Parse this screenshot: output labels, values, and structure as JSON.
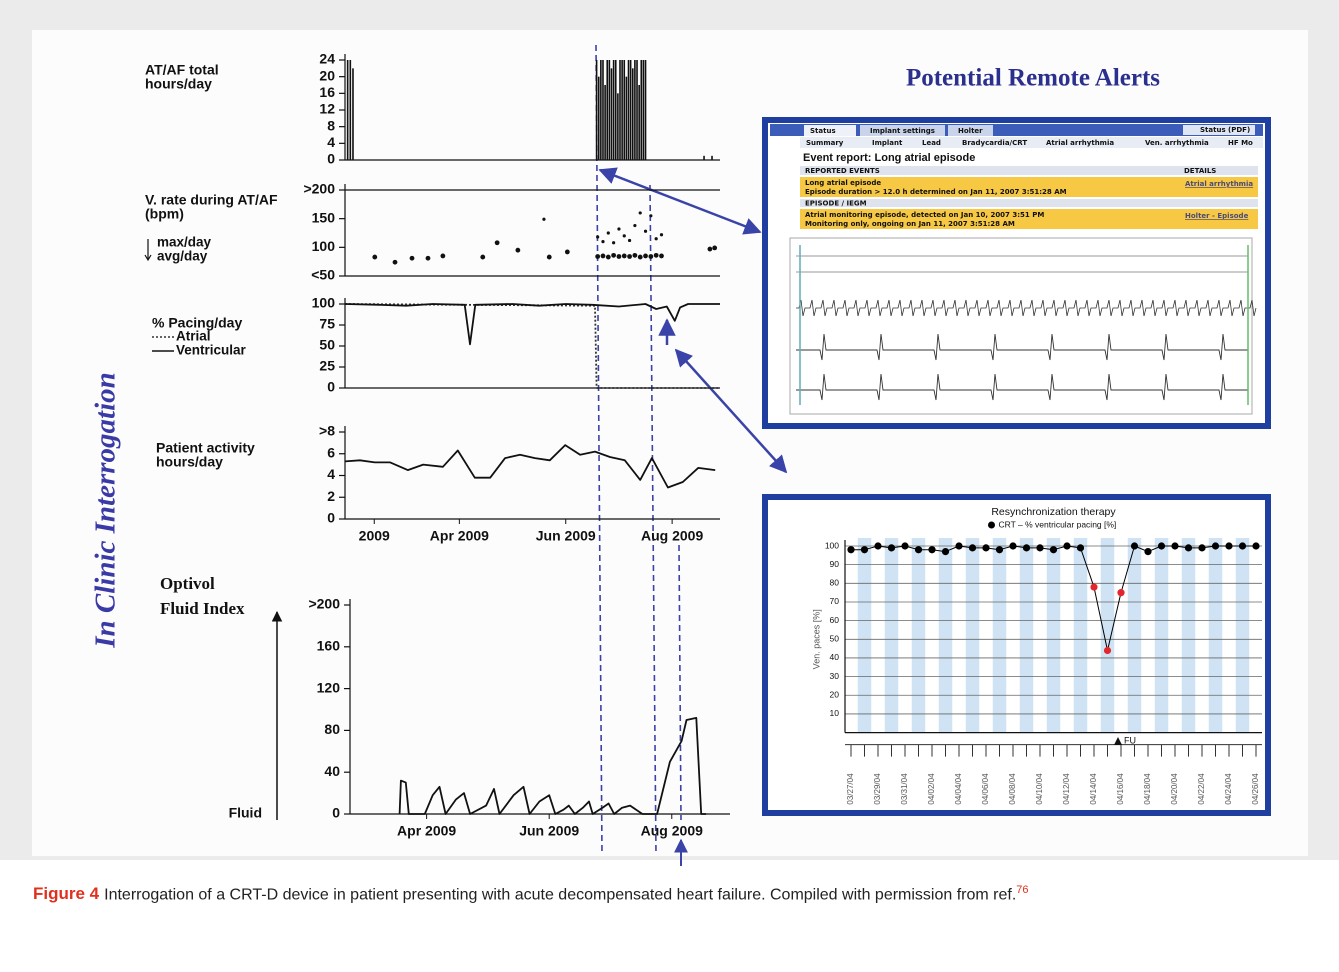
{
  "figure": {
    "alerts_title": "Potential Remote Alerts",
    "side_label": "In Clinic Interrogation",
    "caption": {
      "label": "Figure 4",
      "text": "Interrogation of a CRT-D device in patient presenting with acute decompensated heart failure. Compiled with permission from ref.",
      "ref": "76"
    }
  },
  "alert_screenshot": {
    "tabs": [
      "Status",
      "Implant settings",
      "Holter"
    ],
    "pdf_button": "Status (PDF)",
    "subtabs": [
      "Summary",
      "Implant",
      "Lead",
      "Bradycardia/CRT",
      "Atrial arrhythmia",
      "Ven. arrhythmia",
      "HF Mo"
    ],
    "heading": "Event report: Long atrial episode",
    "headers": [
      "REPORTED EVENTS",
      "DETAILS"
    ],
    "event_title": "Long atrial episode",
    "event_detail": "Episode duration > 12.0 h determined on Jan 11, 2007 3:51:28 AM",
    "event_link": "Atrial arrhythmia",
    "section": "EPISODE / IEGM",
    "episode_title": "Atrial monitoring episode, detected on Jan 10, 2007 3:51 PM",
    "episode_detail": "Monitoring only, ongoing on Jan 11, 2007 3:51:28 AM",
    "episode_link": "Holter - Episode"
  },
  "chart_data": [
    {
      "type": "bar",
      "ylabel": [
        "AT/AF total",
        "hours/day"
      ],
      "color": "#111111",
      "x": [
        1.9,
        1.95,
        2.0,
        6.58,
        6.62,
        6.66,
        6.7,
        6.74,
        6.78,
        6.82,
        6.86,
        6.9,
        6.94,
        6.98,
        7.02,
        7.06,
        7.1,
        7.14,
        7.18,
        7.22,
        7.26,
        7.3,
        7.34,
        7.38,
        7.42,
        7.46,
        7.5,
        8.6,
        8.75
      ],
      "values": [
        24,
        24,
        22,
        24,
        20,
        24,
        24,
        18,
        24,
        24,
        22,
        24,
        24,
        16,
        24,
        24,
        24,
        20,
        24,
        24,
        22,
        24,
        24,
        18,
        24,
        24,
        24,
        1,
        1
      ],
      "xlim": [
        1.85,
        8.9
      ],
      "ylim": [
        0,
        24
      ],
      "yticks": [
        0,
        4,
        8,
        12,
        16,
        20,
        24
      ]
    },
    {
      "type": "scatter",
      "ylabel": [
        "V. rate during AT/AF",
        "(bpm)"
      ],
      "frame": true,
      "xlim": [
        1.85,
        8.9
      ],
      "ylim": [
        50,
        200
      ],
      "yticks": [
        {
          "value": 50,
          "label": "<50"
        },
        100,
        150,
        {
          "value": 200,
          "label": ">200"
        }
      ],
      "series": [
        {
          "name": "max/day",
          "color": "#111111",
          "x": [
            5.59,
            6.6,
            6.7,
            6.8,
            6.9,
            7.0,
            7.1,
            7.2,
            7.3,
            7.4,
            7.5,
            7.6,
            7.7,
            7.8
          ],
          "values": [
            149,
            118,
            110,
            125,
            108,
            132,
            120,
            112,
            138,
            160,
            128,
            155,
            115,
            122
          ]
        },
        {
          "name": "avg/day",
          "color": "#111111",
          "x": [
            2.41,
            2.79,
            3.11,
            3.41,
            3.69,
            4.44,
            4.71,
            5.1,
            5.69,
            6.03,
            6.6,
            6.7,
            6.8,
            6.9,
            7.0,
            7.1,
            7.2,
            7.3,
            7.4,
            7.5,
            7.6,
            7.7,
            7.8,
            8.71,
            8.8
          ],
          "values": [
            83,
            74,
            81,
            81,
            85,
            83,
            108,
            95,
            83,
            92,
            84,
            85,
            83,
            86,
            84,
            85,
            84,
            86,
            83,
            85,
            84,
            86,
            85,
            97,
            99
          ]
        }
      ]
    },
    {
      "type": "line",
      "ylabel": [
        "% Pacing/day"
      ],
      "xlim": [
        1.85,
        8.9
      ],
      "ylim": [
        0,
        100
      ],
      "yticks": [
        0,
        25,
        50,
        75,
        100
      ],
      "series": [
        {
          "name": "Atrial",
          "color": "#333333",
          "dash": true,
          "x": [
            1.85,
            6.55,
            6.58,
            8.9
          ],
          "values": [
            100,
            98,
            0,
            0
          ]
        },
        {
          "name": "Ventricular",
          "color": "#111111",
          "x": [
            1.85,
            2.5,
            3.0,
            3.5,
            4.1,
            4.2,
            4.3,
            5.0,
            5.5,
            6.0,
            6.5,
            7.0,
            7.5,
            7.7,
            7.9,
            8.05,
            8.15,
            8.3,
            8.9
          ],
          "values": [
            100,
            99,
            98,
            100,
            99,
            52,
            99,
            100,
            98,
            100,
            99,
            97,
            100,
            94,
            97,
            80,
            96,
            100,
            100
          ]
        }
      ]
    },
    {
      "type": "line",
      "ylabel": [
        "Patient activity",
        "hours/day"
      ],
      "color": "#111111",
      "x": [
        1.85,
        2.13,
        2.41,
        2.7,
        3.03,
        3.32,
        3.69,
        3.97,
        4.29,
        4.58,
        4.86,
        5.14,
        5.42,
        5.7,
        5.99,
        6.27,
        6.55,
        6.83,
        7.11,
        7.4,
        7.62,
        7.92,
        8.2,
        8.49,
        8.81
      ],
      "values": [
        5.3,
        5.4,
        5.2,
        5.2,
        4.5,
        5.0,
        4.8,
        6.3,
        3.8,
        3.8,
        5.6,
        5.9,
        5.6,
        5.4,
        6.8,
        5.9,
        6.2,
        5.7,
        5.4,
        3.6,
        5.6,
        2.9,
        3.4,
        4.7,
        4.5
      ],
      "xlim": [
        1.85,
        8.9
      ],
      "ylim": [
        0,
        8
      ],
      "yticks": [
        0,
        2,
        4,
        6,
        {
          "value": 8,
          "label": ">8"
        }
      ],
      "xticks": [
        {
          "value": 2.4,
          "label": "2009"
        },
        {
          "value": 4,
          "label": "Apr 2009"
        },
        {
          "value": 6,
          "label": "Jun 2009"
        },
        {
          "value": 8,
          "label": "Aug 2009"
        }
      ]
    },
    {
      "type": "line",
      "ylabel": [
        "Optivol",
        "Fluid Index"
      ],
      "annotation": "Fluid",
      "color": "#111111",
      "x": [
        3.56,
        3.58,
        3.66,
        3.71,
        3.97,
        4.1,
        4.21,
        4.31,
        4.48,
        4.61,
        4.71,
        4.97,
        5.1,
        5.19,
        5.42,
        5.58,
        5.68,
        5.84,
        6.0,
        6.1,
        6.23,
        6.32,
        6.42,
        6.55,
        6.65,
        6.71,
        6.87,
        6.97,
        7.06,
        7.19,
        7.32,
        7.52,
        7.76,
        7.97,
        8.16,
        8.24,
        8.4,
        8.48,
        8.56
      ],
      "values": [
        0,
        32,
        30,
        0,
        0,
        18,
        26,
        0,
        14,
        20,
        0,
        8,
        24,
        0,
        18,
        26,
        0,
        12,
        18,
        0,
        4,
        8,
        0,
        6,
        12,
        0,
        6,
        10,
        0,
        6,
        8,
        0,
        0,
        50,
        70,
        90,
        92,
        0,
        0
      ],
      "xlim": [
        2.75,
        8.95
      ],
      "ylim": [
        0,
        200
      ],
      "yticks": [
        0,
        40,
        80,
        120,
        160,
        {
          "value": 200,
          "label": ">200"
        }
      ],
      "xticks": [
        {
          "value": 4,
          "label": "Apr 2009"
        },
        {
          "value": 6,
          "label": "Jun 2009"
        },
        {
          "value": 8,
          "label": "Aug 2009"
        }
      ]
    },
    {
      "type": "line",
      "title": "Resynchronization therapy",
      "ylabel": "Ven. paces [%]",
      "annotation": "FU",
      "grid": true,
      "categories": [
        "03/27/04",
        null,
        "03/29/04",
        null,
        "03/31/04",
        null,
        "04/02/04",
        null,
        "04/04/04",
        null,
        "04/06/04",
        null,
        "04/08/04",
        null,
        "04/10/04",
        null,
        "04/12/04",
        null,
        "04/14/04",
        null,
        "04/16/04",
        null,
        "04/18/04",
        null,
        "04/20/04",
        null,
        "04/22/04",
        null,
        "04/24/04",
        null,
        "04/26/04"
      ],
      "series": [
        {
          "name": "CRT – % ventricular pacing [%]",
          "color": "#000000",
          "values": [
            98,
            98,
            100,
            99,
            100,
            98,
            98,
            97,
            100,
            99,
            99,
            98,
            100,
            99,
            99,
            98,
            100,
            99,
            78,
            44,
            75,
            100,
            97,
            100,
            100,
            99,
            99,
            100,
            100,
            100,
            100
          ],
          "marker_colors": [
            "#000000",
            "#000000",
            "#000000",
            "#000000",
            "#000000",
            "#000000",
            "#000000",
            "#000000",
            "#000000",
            "#000000",
            "#000000",
            "#000000",
            "#000000",
            "#000000",
            "#000000",
            "#000000",
            "#000000",
            "#000000",
            "#e3262b",
            "#e3262b",
            "#e3262b",
            "#000000",
            "#000000",
            "#000000",
            "#000000",
            "#000000",
            "#000000",
            "#000000",
            "#000000",
            "#000000",
            "#000000"
          ]
        }
      ],
      "ylim": [
        0,
        100
      ],
      "yticks": [
        10,
        20,
        30,
        40,
        50,
        60,
        70,
        80,
        90,
        100
      ]
    }
  ]
}
